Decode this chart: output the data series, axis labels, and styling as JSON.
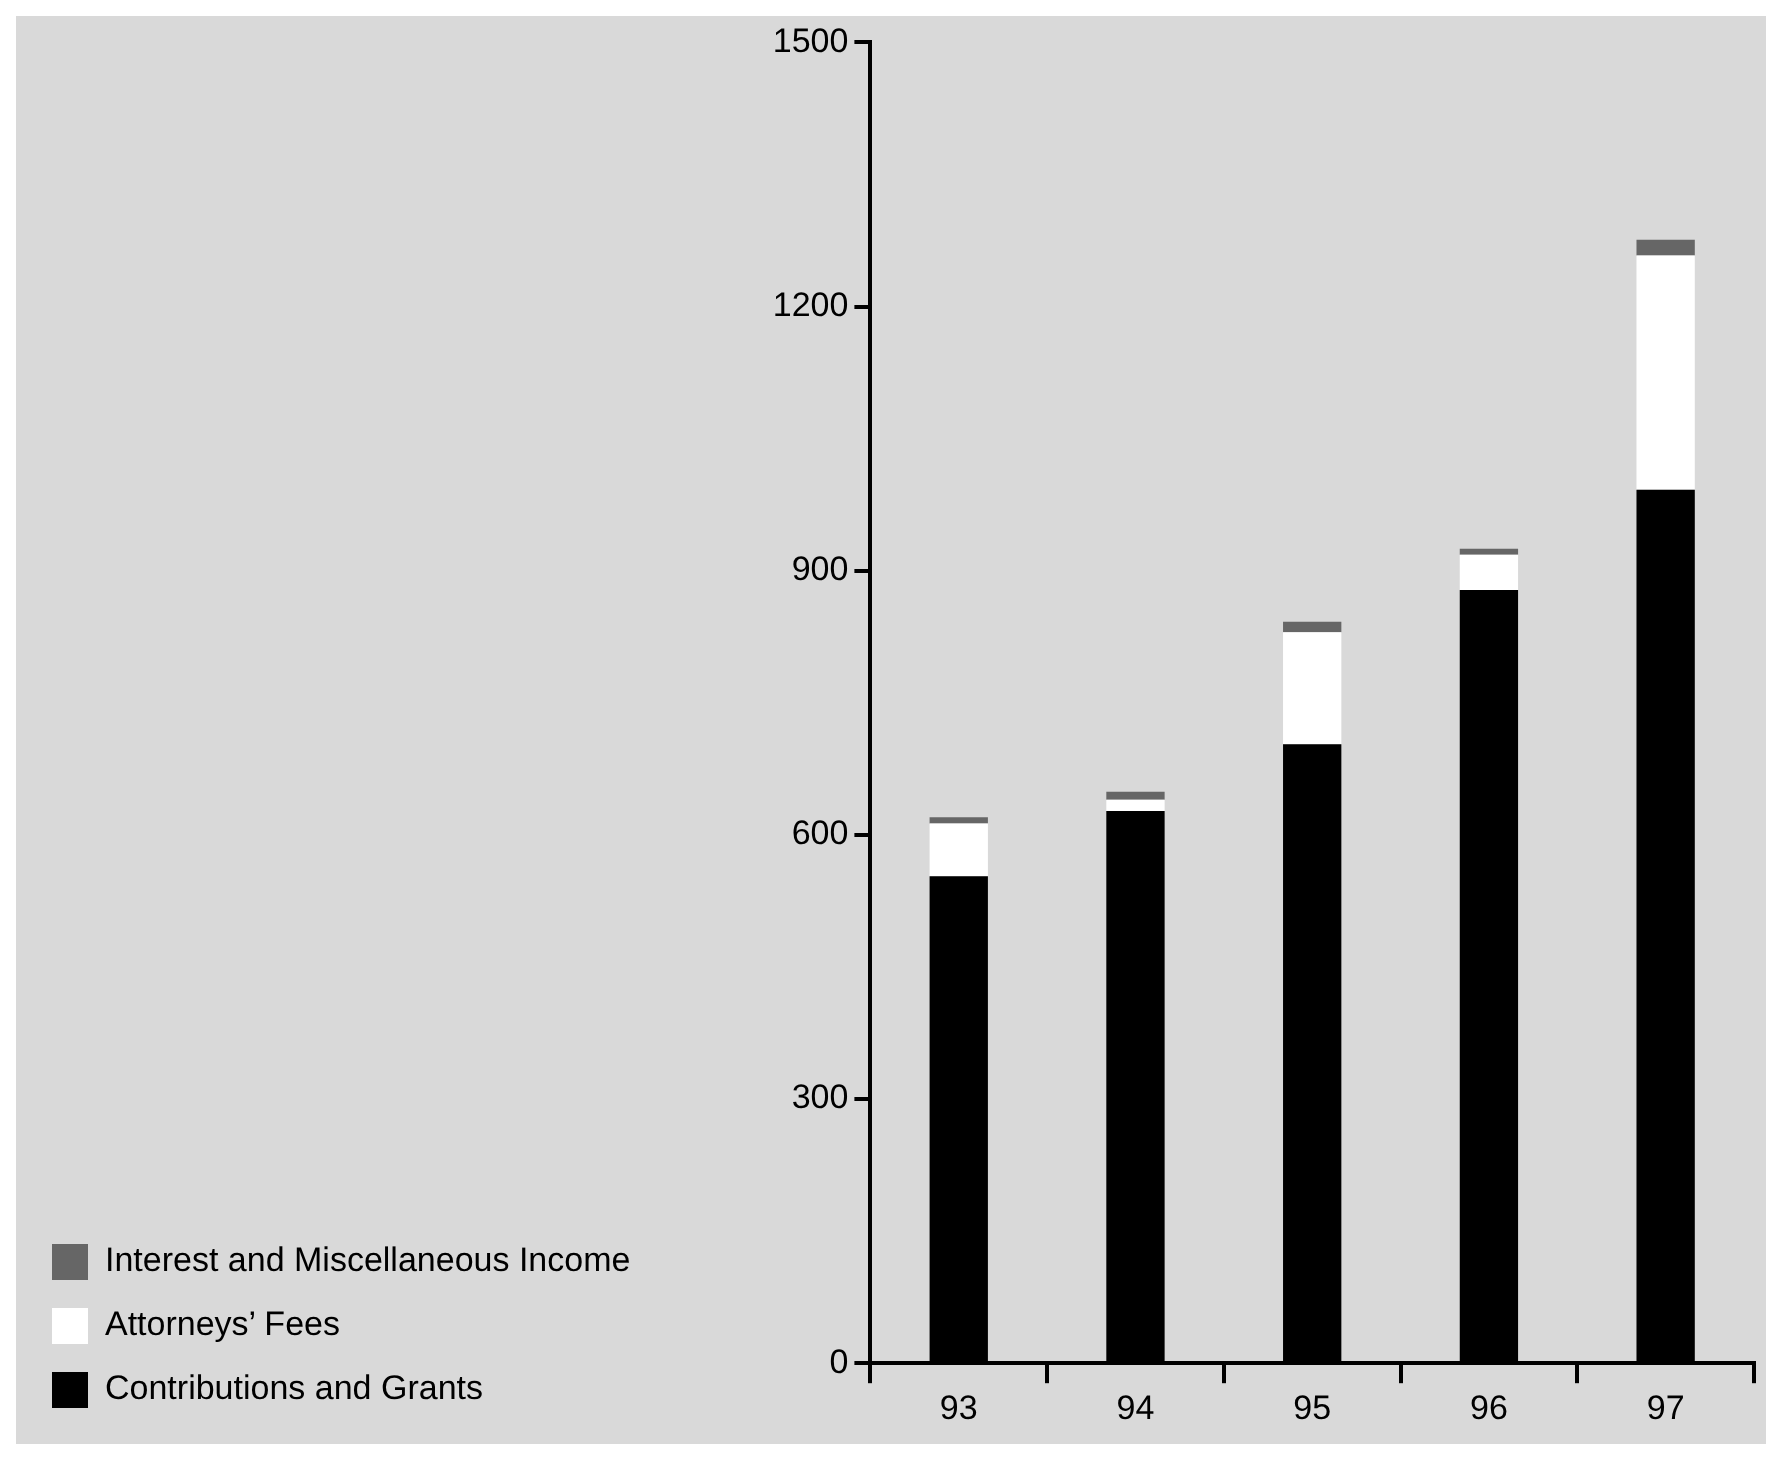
{
  "chart_data": {
    "type": "bar",
    "stacked": true,
    "categories": [
      "93",
      "94",
      "95",
      "96",
      "97"
    ],
    "series": [
      {
        "name": "Contributions and Grants",
        "color": "#000000",
        "values": [
          553,
          627,
          703,
          878,
          992
        ]
      },
      {
        "name": "Attorneys’ Fees",
        "color": "#ffffff",
        "values": [
          60,
          13,
          127,
          40,
          266
        ]
      },
      {
        "name": "Interest and Miscellaneous Income",
        "color": "#666666",
        "values": [
          7,
          9,
          12,
          7,
          18
        ]
      }
    ],
    "ylim": [
      0,
      1500
    ],
    "yticks": [
      0,
      300,
      600,
      900,
      1200,
      1500
    ],
    "grid": false,
    "legend": "bottom left"
  }
}
